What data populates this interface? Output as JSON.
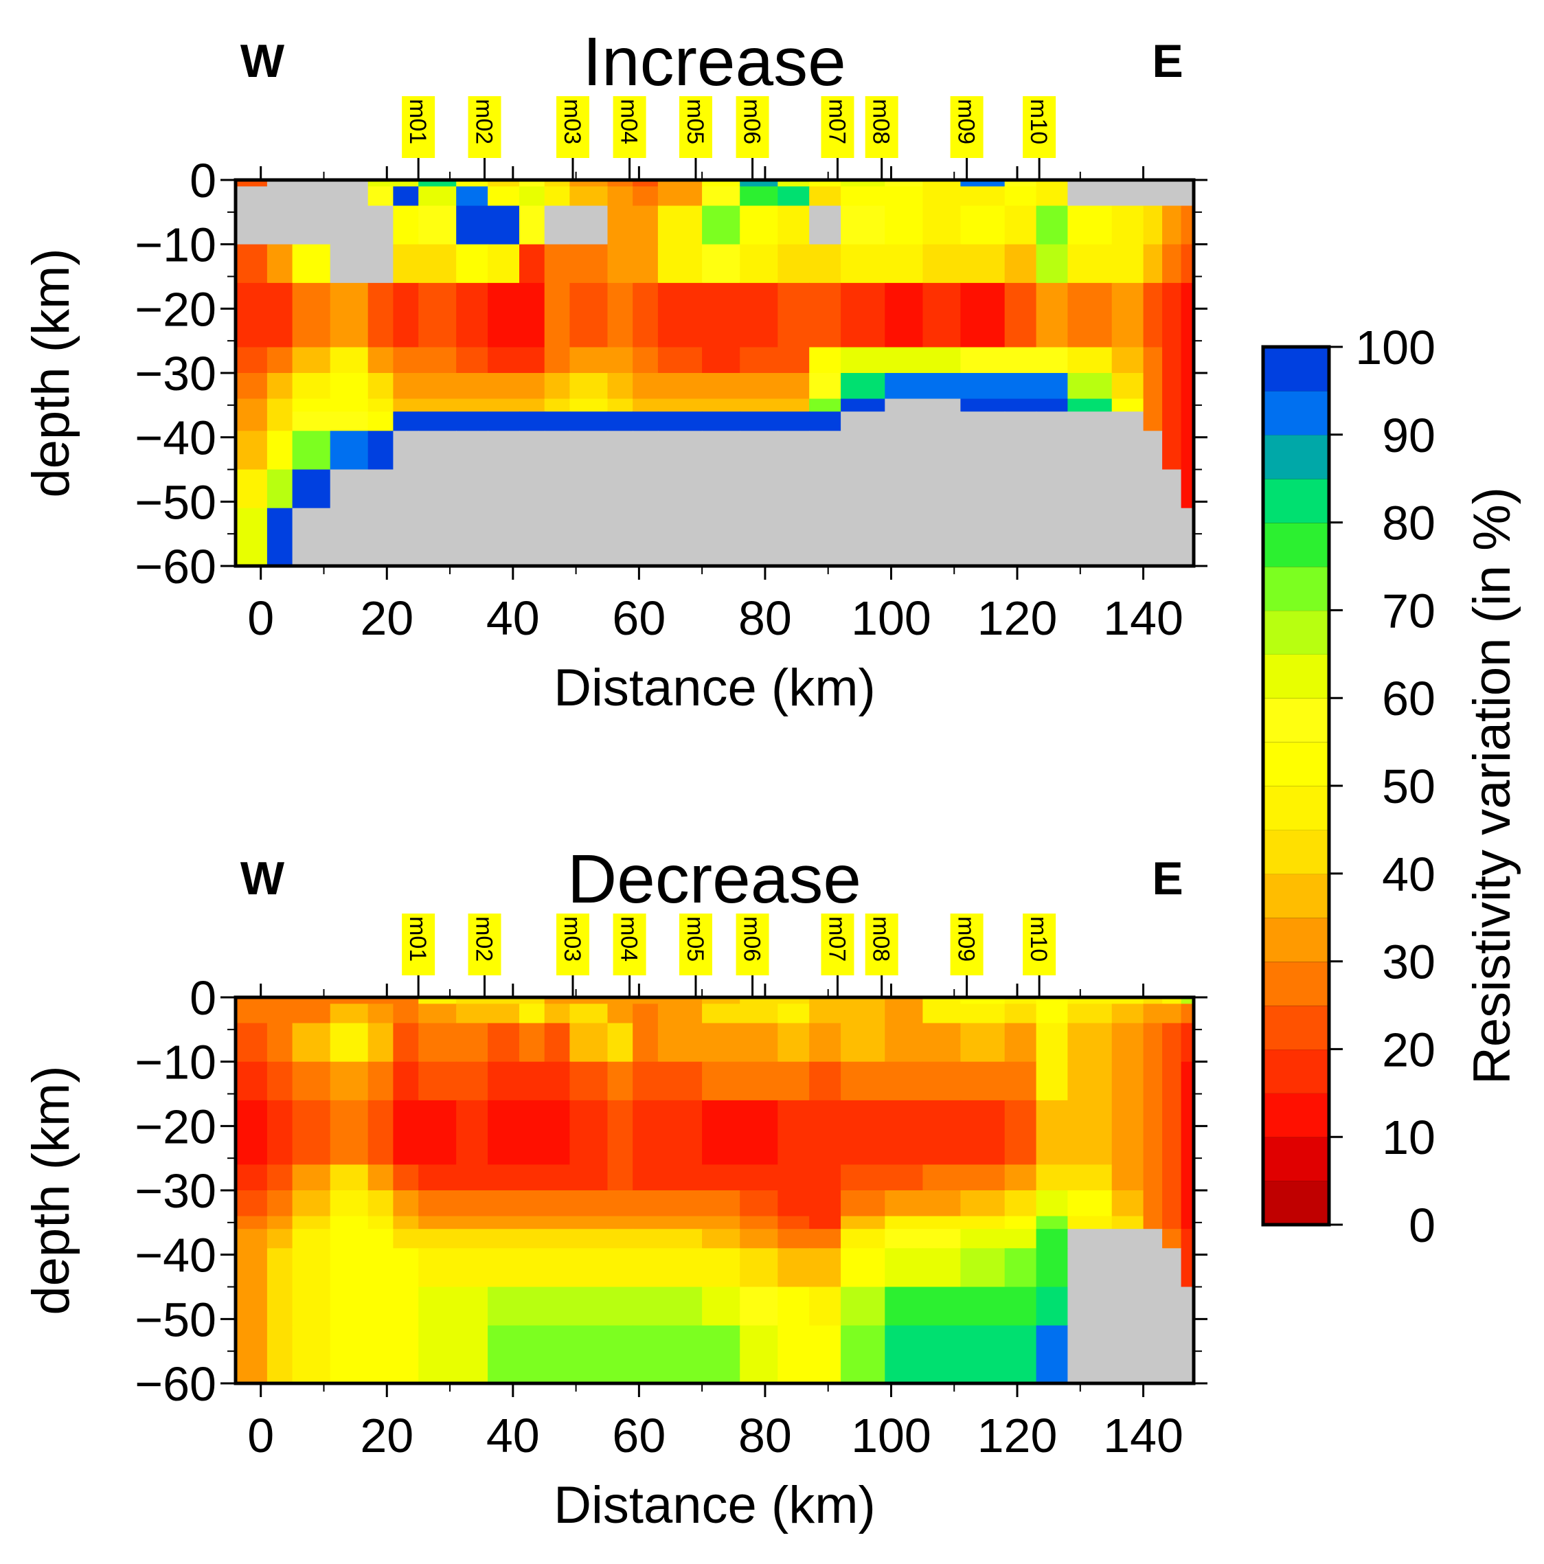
{
  "chart_data": [
    {
      "type": "heatmap",
      "title": "Increase",
      "west_label": "W",
      "east_label": "E",
      "xlabel": "Distance (km)",
      "ylabel": "depth (km)",
      "xlim": [
        -4,
        148
      ],
      "ylim": [
        -60,
        0
      ],
      "xticks": [
        "0",
        "20",
        "40",
        "60",
        "80",
        "100",
        "120",
        "140"
      ],
      "xtick_values": [
        0,
        20,
        40,
        60,
        80,
        100,
        120,
        140
      ],
      "yticks": [
        "0",
        "−10",
        "−20",
        "−30",
        "−40",
        "−50",
        "−60"
      ],
      "ytick_values": [
        0,
        -10,
        -20,
        -30,
        -40,
        -50,
        -60
      ],
      "stations": [
        {
          "name": "m01",
          "x": 25
        },
        {
          "name": "m02",
          "x": 35.5
        },
        {
          "name": "m03",
          "x": 49.5
        },
        {
          "name": "m04",
          "x": 58.5
        },
        {
          "name": "m05",
          "x": 69
        },
        {
          "name": "m06",
          "x": 78
        },
        {
          "name": "m07",
          "x": 91.5
        },
        {
          "name": "m08",
          "x": 98.5
        },
        {
          "name": "m09",
          "x": 112
        },
        {
          "name": "m10",
          "x": 123.5
        }
      ],
      "x_edges": [
        -4,
        1,
        5,
        11,
        17,
        21,
        25,
        31,
        36,
        41,
        45,
        49,
        55,
        59,
        63,
        70,
        76,
        82,
        87,
        92,
        99,
        105,
        111,
        118,
        123,
        128,
        135,
        140,
        143,
        146,
        148
      ],
      "depth_edges": [
        0,
        -1,
        -4,
        -10,
        -16,
        -26,
        -30,
        -34,
        -36,
        -39,
        -45,
        -51,
        -60
      ],
      "values": [
        [
          20,
          -1,
          -1,
          -1,
          60,
          62,
          80,
          50,
          40,
          55,
          40,
          30,
          25,
          20,
          30,
          50,
          85,
          60,
          50,
          60,
          55,
          45,
          90,
          55,
          45,
          -1,
          -1,
          -1,
          -1,
          -1
        ],
        [
          -1,
          -1,
          -1,
          -1,
          55,
          95,
          60,
          92,
          50,
          60,
          45,
          35,
          30,
          25,
          30,
          55,
          75,
          80,
          40,
          50,
          50,
          45,
          45,
          50,
          45,
          -1,
          -1,
          -1,
          -1,
          -1
        ],
        [
          -1,
          -1,
          -1,
          -1,
          -1,
          50,
          55,
          98,
          95,
          55,
          -1,
          -1,
          30,
          30,
          45,
          70,
          50,
          45,
          -1,
          55,
          50,
          45,
          50,
          45,
          70,
          50,
          45,
          40,
          30,
          25
        ],
        [
          20,
          30,
          50,
          -1,
          -1,
          40,
          40,
          50,
          45,
          15,
          25,
          25,
          30,
          30,
          45,
          55,
          45,
          40,
          40,
          45,
          45,
          40,
          40,
          35,
          65,
          45,
          45,
          35,
          25,
          20
        ],
        [
          15,
          15,
          25,
          30,
          20,
          15,
          20,
          15,
          12,
          12,
          25,
          20,
          25,
          20,
          15,
          15,
          18,
          20,
          20,
          15,
          12,
          15,
          12,
          20,
          30,
          25,
          30,
          20,
          15,
          12
        ],
        [
          20,
          25,
          35,
          45,
          30,
          25,
          25,
          20,
          18,
          18,
          25,
          30,
          30,
          25,
          20,
          18,
          20,
          20,
          50,
          60,
          60,
          60,
          55,
          55,
          55,
          45,
          35,
          25,
          15,
          10
        ],
        [
          25,
          35,
          45,
          50,
          40,
          30,
          30,
          30,
          30,
          30,
          35,
          40,
          35,
          30,
          30,
          30,
          30,
          30,
          55,
          80,
          92,
          92,
          92,
          92,
          92,
          65,
          40,
          25,
          15,
          10
        ],
        [
          30,
          40,
          50,
          50,
          45,
          35,
          35,
          35,
          35,
          35,
          40,
          45,
          40,
          35,
          35,
          35,
          35,
          35,
          70,
          95,
          -1,
          -1,
          95,
          95,
          95,
          80,
          50,
          25,
          15,
          10
        ],
        [
          30,
          40,
          55,
          55,
          50,
          98,
          98,
          98,
          98,
          98,
          98,
          98,
          98,
          98,
          98,
          98,
          98,
          98,
          98,
          -1,
          -1,
          -1,
          -1,
          -1,
          -1,
          -1,
          -1,
          25,
          15,
          10
        ],
        [
          35,
          50,
          70,
          90,
          95,
          -1,
          -1,
          -1,
          -1,
          -1,
          -1,
          -1,
          -1,
          -1,
          -1,
          -1,
          -1,
          -1,
          -1,
          -1,
          -1,
          -1,
          -1,
          -1,
          -1,
          -1,
          -1,
          -1,
          15,
          12
        ],
        [
          45,
          65,
          95,
          -1,
          -1,
          -1,
          -1,
          -1,
          -1,
          -1,
          -1,
          -1,
          -1,
          -1,
          -1,
          -1,
          -1,
          -1,
          -1,
          -1,
          -1,
          -1,
          -1,
          -1,
          -1,
          -1,
          -1,
          -1,
          -1,
          12
        ],
        [
          60,
          98,
          -1,
          -1,
          -1,
          -1,
          -1,
          -1,
          -1,
          -1,
          -1,
          -1,
          -1,
          -1,
          -1,
          -1,
          -1,
          -1,
          -1,
          -1,
          -1,
          -1,
          -1,
          -1,
          -1,
          -1,
          -1,
          -1,
          -1,
          -1
        ]
      ]
    },
    {
      "type": "heatmap",
      "title": "Decrease",
      "west_label": "W",
      "east_label": "E",
      "xlabel": "Distance (km)",
      "ylabel": "depth (km)",
      "xlim": [
        -4,
        148
      ],
      "ylim": [
        -60,
        0
      ],
      "xticks": [
        "0",
        "20",
        "40",
        "60",
        "80",
        "100",
        "120",
        "140"
      ],
      "xtick_values": [
        0,
        20,
        40,
        60,
        80,
        100,
        120,
        140
      ],
      "yticks": [
        "0",
        "−10",
        "−20",
        "−30",
        "−40",
        "−50",
        "−60"
      ],
      "ytick_values": [
        0,
        -10,
        -20,
        -30,
        -40,
        -50,
        -60
      ],
      "stations": [
        {
          "name": "m01",
          "x": 25
        },
        {
          "name": "m02",
          "x": 35.5
        },
        {
          "name": "m03",
          "x": 49.5
        },
        {
          "name": "m04",
          "x": 58.5
        },
        {
          "name": "m05",
          "x": 69
        },
        {
          "name": "m06",
          "x": 78
        },
        {
          "name": "m07",
          "x": 91.5
        },
        {
          "name": "m08",
          "x": 98.5
        },
        {
          "name": "m09",
          "x": 112
        },
        {
          "name": "m10",
          "x": 123.5
        }
      ],
      "x_edges": [
        -4,
        1,
        5,
        11,
        17,
        21,
        25,
        31,
        36,
        41,
        45,
        49,
        55,
        59,
        63,
        70,
        76,
        82,
        87,
        92,
        99,
        105,
        111,
        118,
        123,
        128,
        135,
        140,
        143,
        146,
        148
      ],
      "depth_edges": [
        0,
        -1,
        -4,
        -10,
        -16,
        -26,
        -30,
        -34,
        -36,
        -39,
        -45,
        -51,
        -60
      ],
      "values": [
        [
          25,
          25,
          25,
          25,
          25,
          25,
          45,
          40,
          40,
          40,
          30,
          30,
          30,
          30,
          30,
          35,
          40,
          40,
          35,
          35,
          30,
          45,
          50,
          45,
          50,
          45,
          45,
          40,
          45,
          65
        ],
        [
          25,
          25,
          25,
          35,
          30,
          25,
          30,
          35,
          35,
          45,
          35,
          40,
          30,
          25,
          30,
          40,
          40,
          45,
          35,
          35,
          30,
          45,
          45,
          40,
          50,
          40,
          35,
          30,
          30,
          25
        ],
        [
          20,
          25,
          35,
          45,
          35,
          20,
          25,
          25,
          20,
          25,
          20,
          35,
          40,
          25,
          30,
          30,
          30,
          35,
          30,
          35,
          30,
          30,
          35,
          30,
          45,
          35,
          30,
          25,
          20,
          15
        ],
        [
          18,
          20,
          25,
          30,
          25,
          18,
          20,
          20,
          15,
          18,
          15,
          20,
          25,
          20,
          20,
          25,
          25,
          25,
          20,
          25,
          25,
          25,
          25,
          25,
          45,
          35,
          30,
          25,
          20,
          12
        ],
        [
          12,
          15,
          20,
          25,
          20,
          12,
          12,
          15,
          12,
          10,
          12,
          15,
          20,
          15,
          15,
          12,
          12,
          15,
          15,
          15,
          15,
          15,
          15,
          20,
          35,
          35,
          30,
          25,
          20,
          12
        ],
        [
          15,
          20,
          30,
          40,
          30,
          20,
          18,
          18,
          18,
          15,
          15,
          18,
          20,
          18,
          18,
          15,
          15,
          15,
          15,
          20,
          20,
          25,
          25,
          30,
          40,
          40,
          30,
          25,
          20,
          12
        ],
        [
          20,
          25,
          35,
          45,
          40,
          30,
          25,
          25,
          25,
          25,
          25,
          25,
          25,
          25,
          25,
          25,
          20,
          18,
          15,
          25,
          30,
          30,
          35,
          40,
          60,
          50,
          35,
          25,
          20,
          12
        ],
        [
          25,
          30,
          40,
          50,
          45,
          35,
          30,
          30,
          30,
          30,
          30,
          30,
          30,
          30,
          30,
          30,
          25,
          20,
          18,
          35,
          45,
          45,
          45,
          50,
          70,
          45,
          40,
          25,
          20,
          12
        ],
        [
          30,
          35,
          45,
          50,
          50,
          40,
          40,
          40,
          40,
          40,
          40,
          40,
          40,
          40,
          40,
          35,
          30,
          25,
          25,
          45,
          55,
          55,
          60,
          60,
          75,
          -1,
          -1,
          -1,
          25,
          15
        ],
        [
          30,
          40,
          45,
          50,
          50,
          50,
          45,
          45,
          45,
          45,
          45,
          45,
          45,
          45,
          45,
          45,
          40,
          35,
          35,
          50,
          60,
          60,
          65,
          70,
          75,
          -1,
          -1,
          -1,
          -1,
          15
        ],
        [
          30,
          40,
          45,
          50,
          50,
          50,
          60,
          60,
          65,
          65,
          65,
          65,
          65,
          65,
          65,
          60,
          55,
          50,
          45,
          65,
          75,
          75,
          75,
          75,
          80,
          -1,
          -1,
          -1,
          -1,
          -1
        ],
        [
          30,
          40,
          45,
          50,
          50,
          50,
          60,
          62,
          70,
          70,
          70,
          70,
          70,
          70,
          70,
          70,
          60,
          50,
          50,
          70,
          82,
          82,
          82,
          82,
          92,
          -1,
          -1,
          -1,
          -1,
          -1
        ]
      ]
    }
  ],
  "colorbar": {
    "label": "Resistivity variation (in %)",
    "ticks": [
      "0",
      "10",
      "20",
      "30",
      "40",
      "50",
      "60",
      "70",
      "80",
      "90",
      "100"
    ],
    "tick_values": [
      0,
      10,
      20,
      30,
      40,
      50,
      60,
      70,
      80,
      90,
      100
    ],
    "step": 5,
    "colors": [
      "#c00000",
      "#e00000",
      "#ff1000",
      "#ff3000",
      "#ff5200",
      "#ff7800",
      "#ff9a00",
      "#ffbd00",
      "#ffe000",
      "#fff300",
      "#ffff00",
      "#ffff10",
      "#e8ff00",
      "#b8ff10",
      "#7cff20",
      "#2cf030",
      "#00e070",
      "#00a8a8",
      "#0070f0",
      "#0040e0",
      "#0020c8"
    ],
    "mask_color": "#c8c8c8"
  }
}
